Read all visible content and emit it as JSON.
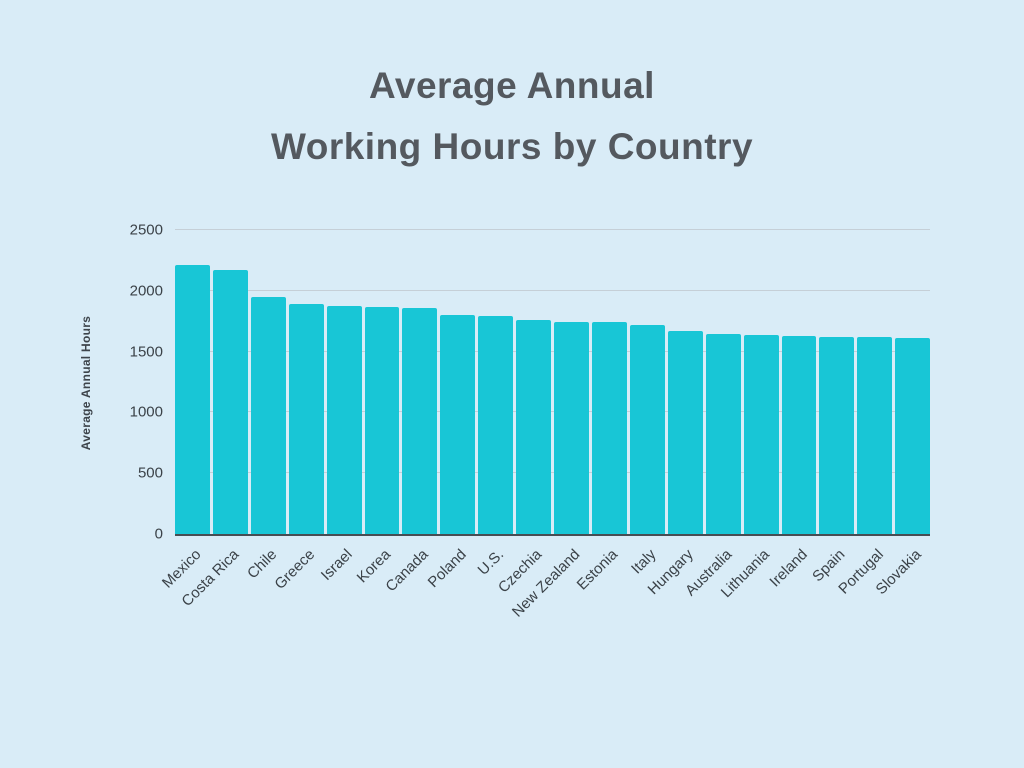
{
  "title": {
    "line1": "Average Annual",
    "line2": "Working Hours by Country"
  },
  "chart_data": {
    "type": "bar",
    "title": "Average Annual Working Hours by Country",
    "xlabel": "",
    "ylabel": "Average Annual Hours",
    "ylim": [
      0,
      2500
    ],
    "yticks": [
      0,
      500,
      1000,
      1500,
      2000,
      2500
    ],
    "grid": true,
    "legend": "none",
    "bar_color": "#18c6d6",
    "background_color": "#d9ecf7",
    "categories": [
      "Mexico",
      "Costa Rica",
      "Chile",
      "Greece",
      "Israel",
      "Korea",
      "Canada",
      "Poland",
      "U.S.",
      "Czechia",
      "New Zealand",
      "Estonia",
      "Italy",
      "Hungary",
      "Australia",
      "Lithuania",
      "Ireland",
      "Spain",
      "Portugal",
      "Slovakia"
    ],
    "values": [
      2210,
      2170,
      1950,
      1890,
      1875,
      1865,
      1855,
      1805,
      1790,
      1760,
      1745,
      1740,
      1720,
      1670,
      1645,
      1635,
      1625,
      1620,
      1620,
      1615
    ]
  }
}
